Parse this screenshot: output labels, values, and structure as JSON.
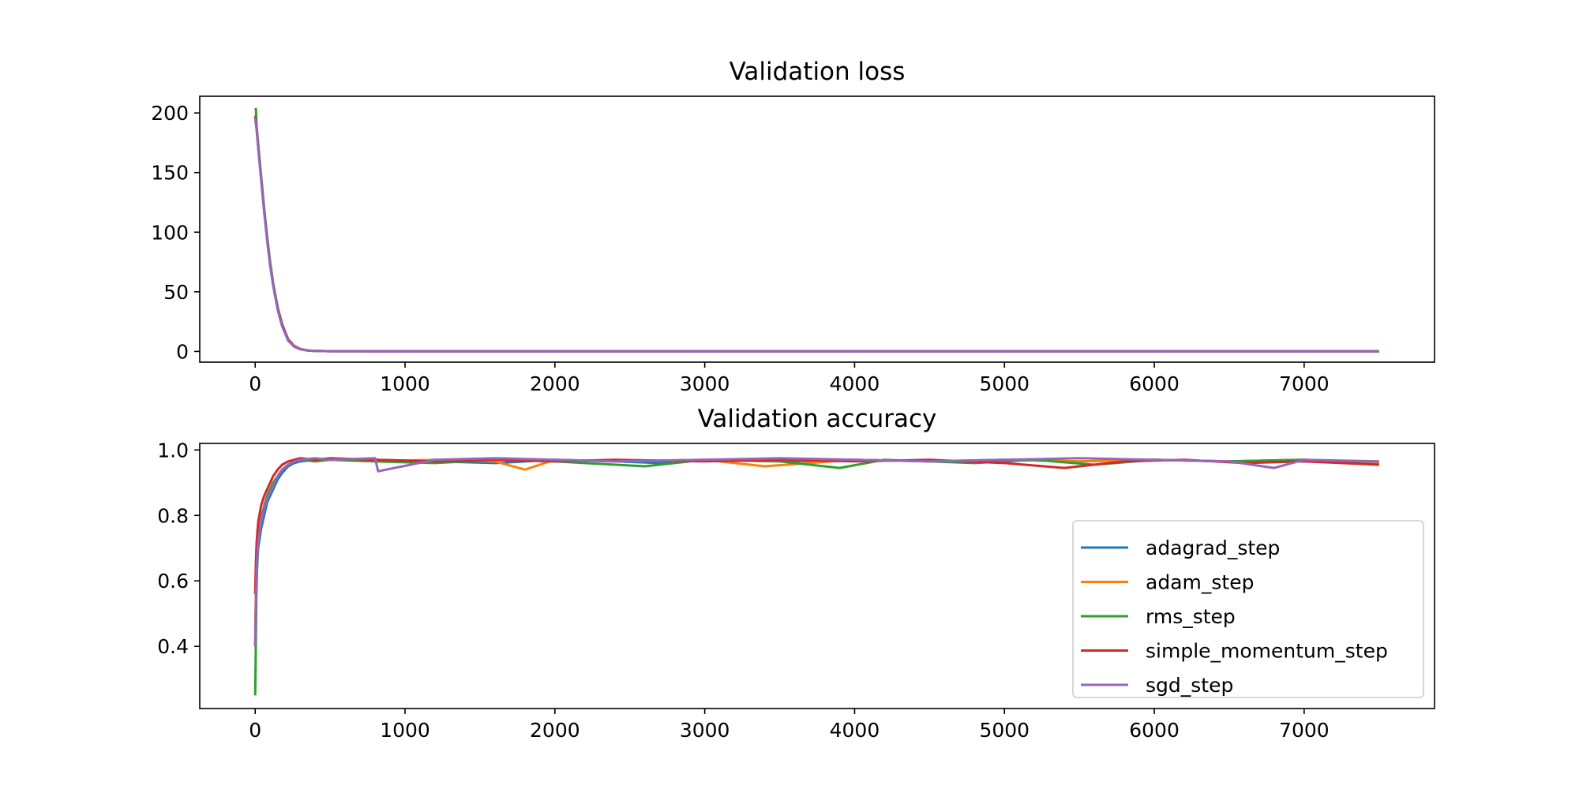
{
  "colors": {
    "adagrad_step": "#1f77b4",
    "adam_step": "#ff7f0e",
    "rms_step": "#2ca02c",
    "simple_momentum_step": "#d62728",
    "sgd_step": "#9467bd"
  },
  "chart_data": [
    {
      "type": "line",
      "title": "Validation loss",
      "xlabel": "",
      "ylabel": "",
      "xlim": [
        -370,
        7870
      ],
      "ylim": [
        -9,
        214
      ],
      "x_ticks": [
        0,
        1000,
        2000,
        3000,
        4000,
        5000,
        6000,
        7000
      ],
      "y_ticks": [
        0,
        50,
        100,
        150,
        200
      ],
      "grid": false,
      "legend": null,
      "series": [
        {
          "name": "adagrad_step",
          "x": [
            0,
            10,
            20,
            40,
            60,
            80,
            100,
            120,
            150,
            180,
            220,
            260,
            300,
            350,
            400,
            500,
            1000,
            2000,
            3000,
            4000,
            5000,
            6000,
            7000,
            7500
          ],
          "y": [
            196,
            186,
            172,
            145,
            118,
            94,
            73,
            56,
            36,
            22,
            10,
            4.5,
            2,
            0.8,
            0.4,
            0.2,
            0.1,
            0.1,
            0.1,
            0.1,
            0.1,
            0.1,
            0.1,
            0.1
          ]
        },
        {
          "name": "adam_step",
          "x": [
            0,
            10,
            20,
            40,
            60,
            80,
            100,
            120,
            150,
            180,
            220,
            260,
            300,
            350,
            400,
            500,
            1000,
            2000,
            3000,
            4000,
            5000,
            6000,
            7000,
            7500
          ],
          "y": [
            198,
            188,
            173,
            146,
            119,
            95,
            74,
            57,
            37,
            22,
            10,
            4.5,
            2,
            0.8,
            0.4,
            0.2,
            0.1,
            0.1,
            0.1,
            0.1,
            0.1,
            0.1,
            0.1,
            0.1
          ]
        },
        {
          "name": "rms_step",
          "x": [
            0,
            5,
            10,
            20,
            40,
            60,
            80,
            100,
            120,
            150,
            180,
            220,
            260,
            300,
            350,
            400,
            500,
            1000,
            2000,
            3000,
            4000,
            5000,
            6000,
            7000,
            7500
          ],
          "y": [
            204,
            203,
            188,
            174,
            147,
            120,
            96,
            75,
            57,
            37,
            23,
            10,
            4.5,
            2,
            0.8,
            0.4,
            0.2,
            0.1,
            0.1,
            0.1,
            0.1,
            0.1,
            0.1,
            0.1,
            0.1
          ]
        },
        {
          "name": "simple_momentum_step",
          "x": [
            0,
            10,
            20,
            40,
            60,
            80,
            100,
            120,
            150,
            180,
            220,
            260,
            300,
            350,
            400,
            500,
            1000,
            2000,
            3000,
            4000,
            5000,
            6000,
            7000,
            7500
          ],
          "y": [
            197,
            187,
            172,
            145,
            118,
            94,
            73,
            56,
            36,
            22,
            10,
            4.5,
            2,
            0.8,
            0.4,
            0.2,
            0.1,
            0.1,
            0.1,
            0.1,
            0.1,
            0.1,
            0.1,
            0.1
          ]
        },
        {
          "name": "sgd_step",
          "x": [
            0,
            10,
            20,
            40,
            60,
            80,
            100,
            120,
            150,
            180,
            220,
            260,
            300,
            350,
            400,
            500,
            1000,
            2000,
            3000,
            4000,
            5000,
            6000,
            7000,
            7500
          ],
          "y": [
            196,
            186,
            171,
            144,
            117,
            93,
            72,
            55,
            35,
            21,
            9,
            4,
            1.8,
            0.7,
            0.4,
            0.2,
            0.1,
            0.1,
            0.1,
            0.1,
            0.1,
            0.1,
            0.1,
            0.1
          ]
        }
      ]
    },
    {
      "type": "line",
      "title": "Validation accuracy",
      "xlabel": "",
      "ylabel": "",
      "xlim": [
        -370,
        7870
      ],
      "ylim": [
        0.21,
        1.02
      ],
      "x_ticks": [
        0,
        1000,
        2000,
        3000,
        4000,
        5000,
        6000,
        7000
      ],
      "y_ticks": [
        0.4,
        0.6,
        0.8,
        1.0
      ],
      "y_tick_labels": [
        "0.4",
        "0.6",
        "0.8",
        "1.0"
      ],
      "grid": false,
      "legend": "lower-right",
      "series": [
        {
          "name": "adagrad_step",
          "x": [
            0,
            5,
            10,
            20,
            40,
            60,
            80,
            100,
            120,
            150,
            180,
            220,
            260,
            300,
            400,
            500,
            800,
            1200,
            1600,
            2000,
            2400,
            2700,
            3000,
            3500,
            4000,
            4500,
            5000,
            5500,
            6000,
            6500,
            7000,
            7500
          ],
          "y": [
            0.4,
            0.52,
            0.62,
            0.7,
            0.76,
            0.8,
            0.84,
            0.86,
            0.88,
            0.91,
            0.93,
            0.95,
            0.96,
            0.965,
            0.97,
            0.97,
            0.97,
            0.965,
            0.96,
            0.97,
            0.965,
            0.96,
            0.97,
            0.965,
            0.97,
            0.965,
            0.97,
            0.965,
            0.97,
            0.965,
            0.97,
            0.96
          ]
        },
        {
          "name": "adam_step",
          "x": [
            0,
            5,
            10,
            20,
            40,
            60,
            80,
            100,
            120,
            150,
            180,
            220,
            260,
            300,
            400,
            500,
            800,
            1200,
            1600,
            1800,
            2000,
            2400,
            3000,
            3400,
            4000,
            4500,
            5000,
            5500,
            6000,
            6500,
            7000,
            7500
          ],
          "y": [
            0.45,
            0.58,
            0.66,
            0.73,
            0.79,
            0.83,
            0.86,
            0.88,
            0.9,
            0.92,
            0.94,
            0.955,
            0.965,
            0.97,
            0.97,
            0.97,
            0.965,
            0.97,
            0.965,
            0.94,
            0.97,
            0.965,
            0.97,
            0.95,
            0.97,
            0.965,
            0.97,
            0.965,
            0.97,
            0.965,
            0.97,
            0.96
          ]
        },
        {
          "name": "rms_step",
          "x": [
            0,
            3,
            8,
            15,
            30,
            50,
            80,
            100,
            120,
            150,
            180,
            220,
            260,
            300,
            400,
            500,
            800,
            1200,
            1600,
            2000,
            2600,
            3000,
            3500,
            3900,
            4200,
            4800,
            5200,
            5600,
            6000,
            6500,
            7000,
            7500
          ],
          "y": [
            0.25,
            0.35,
            0.55,
            0.68,
            0.76,
            0.81,
            0.86,
            0.88,
            0.9,
            0.92,
            0.94,
            0.955,
            0.965,
            0.97,
            0.965,
            0.97,
            0.965,
            0.96,
            0.97,
            0.965,
            0.95,
            0.97,
            0.965,
            0.945,
            0.97,
            0.96,
            0.97,
            0.955,
            0.97,
            0.965,
            0.97,
            0.955
          ]
        },
        {
          "name": "simple_momentum_step",
          "x": [
            0,
            5,
            10,
            20,
            40,
            60,
            80,
            100,
            120,
            150,
            180,
            220,
            260,
            300,
            400,
            500,
            800,
            1200,
            1600,
            2000,
            2400,
            3000,
            3500,
            4000,
            4500,
            5000,
            5400,
            5800,
            6200,
            6600,
            7000,
            7500
          ],
          "y": [
            0.56,
            0.66,
            0.72,
            0.78,
            0.83,
            0.86,
            0.88,
            0.9,
            0.92,
            0.94,
            0.955,
            0.965,
            0.97,
            0.975,
            0.97,
            0.975,
            0.97,
            0.965,
            0.97,
            0.965,
            0.97,
            0.965,
            0.97,
            0.965,
            0.97,
            0.96,
            0.945,
            0.965,
            0.97,
            0.96,
            0.965,
            0.955
          ]
        },
        {
          "name": "sgd_step",
          "x": [
            0,
            5,
            10,
            20,
            40,
            60,
            80,
            100,
            120,
            150,
            180,
            220,
            260,
            300,
            400,
            500,
            800,
            820,
            1200,
            1600,
            2000,
            2400,
            3000,
            3500,
            4000,
            4500,
            5000,
            5500,
            6000,
            6500,
            6800,
            7000,
            7500
          ],
          "y": [
            0.4,
            0.55,
            0.64,
            0.72,
            0.78,
            0.82,
            0.85,
            0.87,
            0.89,
            0.92,
            0.94,
            0.955,
            0.965,
            0.97,
            0.975,
            0.97,
            0.975,
            0.935,
            0.97,
            0.975,
            0.97,
            0.965,
            0.97,
            0.975,
            0.97,
            0.965,
            0.97,
            0.975,
            0.97,
            0.965,
            0.945,
            0.97,
            0.965
          ]
        }
      ]
    }
  ]
}
